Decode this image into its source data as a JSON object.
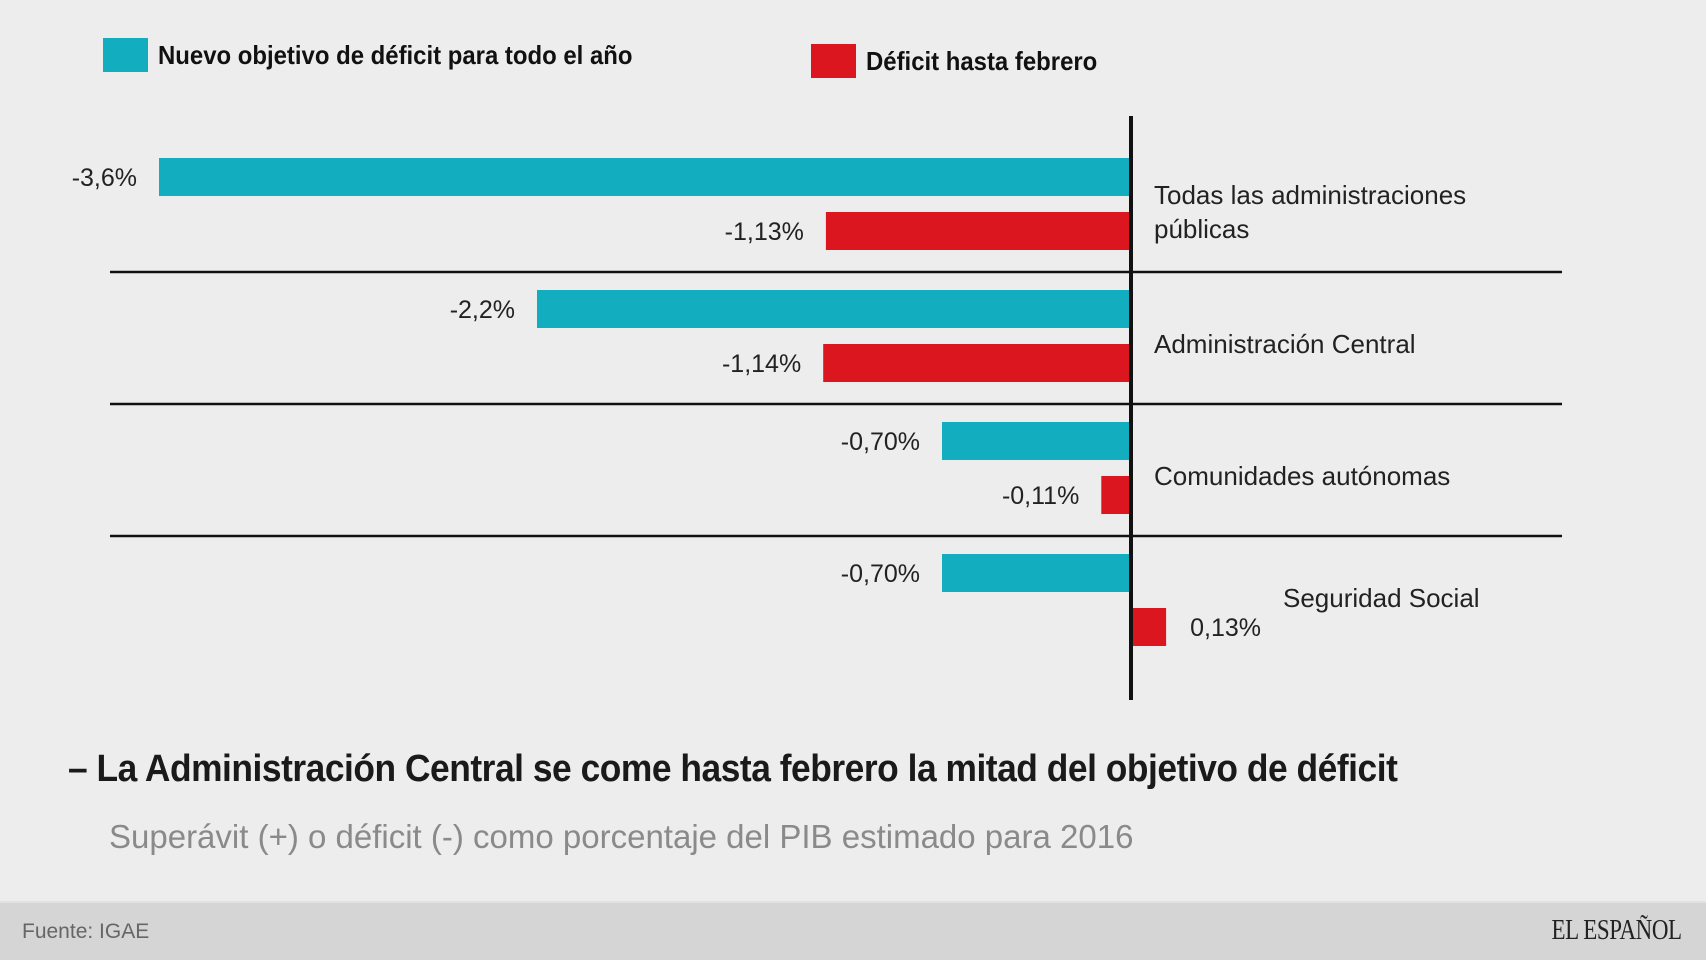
{
  "legend": [
    {
      "label": "Nuevo objetivo de déficit para todo el año",
      "color": "#12adbf"
    },
    {
      "label": "Déficit hasta febrero",
      "color": "#dc161e"
    }
  ],
  "chart_data": {
    "type": "bar",
    "orientation": "horizontal",
    "title": "La Administración Central se come hasta febrero la mitad del objetivo de déficit",
    "subtitle": "Superávit (+) o déficit (-) como porcentaje del PIB estimado para 2016",
    "xlabel": "",
    "ylabel": "",
    "unit": "% del PIB",
    "categories": [
      "Todas las administraciones públicas",
      "Administración Central",
      "Comunidades autónomas",
      "Seguridad Social"
    ],
    "series": [
      {
        "name": "Nuevo objetivo de déficit para todo el año",
        "color": "#12adbf",
        "values": [
          -3.6,
          -2.2,
          -0.7,
          -0.7
        ],
        "labels": [
          "-3,6%",
          "-2,2%",
          "-0,70%",
          "-0,70%"
        ]
      },
      {
        "name": "Déficit hasta febrero",
        "color": "#dc161e",
        "values": [
          -1.13,
          -1.14,
          -0.11,
          0.13
        ],
        "labels": [
          "-1,13%",
          "-1,14%",
          "-0,11%",
          "0,13%"
        ]
      }
    ],
    "xlim": [
      -3.6,
      0.13
    ],
    "grid": false,
    "legend_position": "top-left"
  },
  "category_label_lines": [
    [
      "Todas las administraciones",
      "públicas"
    ],
    [
      "Administración Central"
    ],
    [
      "Comunidades autónomas"
    ],
    [
      "Seguridad Social"
    ]
  ],
  "footer": {
    "source": "Fuente: IGAE",
    "brand": "EL ESPAÑOL"
  }
}
